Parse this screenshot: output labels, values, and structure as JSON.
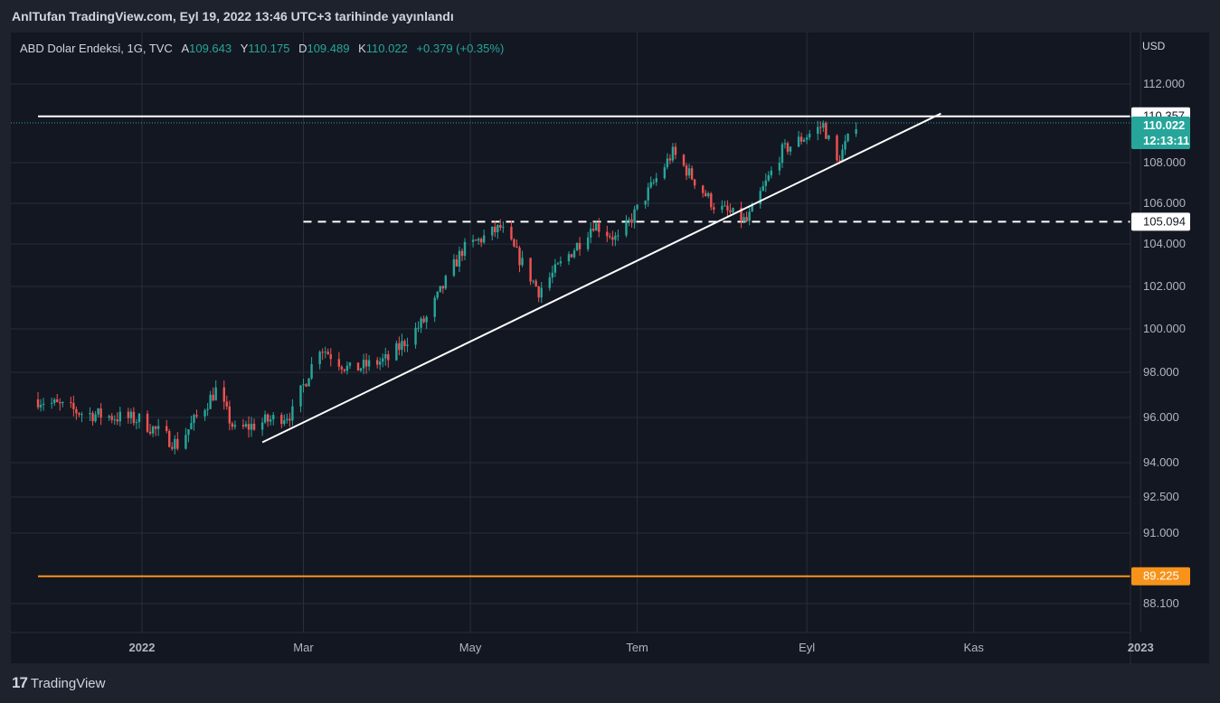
{
  "header": {
    "publish_text": "AnlTufan TradingView.com, Eyl 19, 2022 13:46 UTC+3 tarihinde yayınlandı"
  },
  "legend": {
    "symbol": "ABD Dolar Endeksi, 1G, TVC",
    "open_label": "A",
    "open_value": "109.643",
    "high_label": "Y",
    "high_value": "110.175",
    "low_label": "D",
    "low_value": "109.489",
    "close_label": "K",
    "close_value": "110.022",
    "change": "+0.379 (+0.35%)"
  },
  "footer": {
    "brand": "TradingView"
  },
  "colors": {
    "background": "#1e222d",
    "panel": "#131722",
    "grid": "#2a2e39",
    "up": "#26a69a",
    "down": "#ef5350",
    "orange": "#f7931a",
    "white": "#ffffff"
  },
  "chart_data": {
    "type": "candlestick",
    "currency_label": "USD",
    "y_scale": "log",
    "y_ticks": [
      "112.000",
      "108.000",
      "106.000",
      "104.000",
      "102.000",
      "100.000",
      "98.000",
      "96.000",
      "94.000",
      "92.500",
      "91.000",
      "88.100"
    ],
    "x_ticks": [
      {
        "label": "2022",
        "date": "2022-01-01"
      },
      {
        "label": "Mar",
        "date": "2022-03-01"
      },
      {
        "label": "May",
        "date": "2022-05-01"
      },
      {
        "label": "Tem",
        "date": "2022-07-01"
      },
      {
        "label": "Eyl",
        "date": "2022-09-01"
      },
      {
        "label": "Kas",
        "date": "2022-11-01"
      },
      {
        "label": "2023",
        "date": "2023-01-01"
      }
    ],
    "price_labels": [
      {
        "value": "110.357",
        "style": "white"
      },
      {
        "value": "110.022",
        "time": "12:13:11",
        "style": "teal"
      },
      {
        "value": "105.094",
        "style": "white"
      },
      {
        "value": "89.225",
        "style": "orange"
      }
    ],
    "horizontal_lines": [
      {
        "price": 110.357,
        "style": "solid",
        "color": "#ffffff",
        "from": "2021-11-24"
      },
      {
        "price": 105.094,
        "style": "dashed",
        "color": "#ffffff",
        "from": "2022-03-01"
      },
      {
        "price": 89.225,
        "style": "solid",
        "color": "#f7931a",
        "from": "2021-11-24"
      }
    ],
    "trendline": {
      "start": {
        "date": "2022-02-14",
        "price": 94.9
      },
      "end": {
        "date": "2022-10-20",
        "price": 110.5
      }
    },
    "series": [
      {
        "date": "2021-11-24",
        "close": 96.8
      },
      {
        "date": "2021-12-10",
        "close": 96.2
      },
      {
        "date": "2021-12-31",
        "close": 95.9
      },
      {
        "date": "2022-01-14",
        "close": 94.8
      },
      {
        "date": "2022-01-28",
        "close": 97.2
      },
      {
        "date": "2022-02-04",
        "close": 95.4
      },
      {
        "date": "2022-02-25",
        "close": 96.2
      },
      {
        "date": "2022-03-07",
        "close": 99.2
      },
      {
        "date": "2022-03-18",
        "close": 98.1
      },
      {
        "date": "2022-04-01",
        "close": 98.6
      },
      {
        "date": "2022-04-15",
        "close": 100.5
      },
      {
        "date": "2022-04-28",
        "close": 103.7
      },
      {
        "date": "2022-05-12",
        "close": 104.8
      },
      {
        "date": "2022-05-26",
        "close": 101.8
      },
      {
        "date": "2022-06-10",
        "close": 104.1
      },
      {
        "date": "2022-06-15",
        "close": 105.0
      },
      {
        "date": "2022-06-24",
        "close": 104.2
      },
      {
        "date": "2022-07-14",
        "close": 108.5
      },
      {
        "date": "2022-07-29",
        "close": 105.9
      },
      {
        "date": "2022-08-10",
        "close": 105.1
      },
      {
        "date": "2022-08-23",
        "close": 108.6
      },
      {
        "date": "2022-09-07",
        "close": 109.9
      },
      {
        "date": "2022-09-12",
        "close": 108.0
      },
      {
        "date": "2022-09-19",
        "close": 110.022
      }
    ]
  }
}
